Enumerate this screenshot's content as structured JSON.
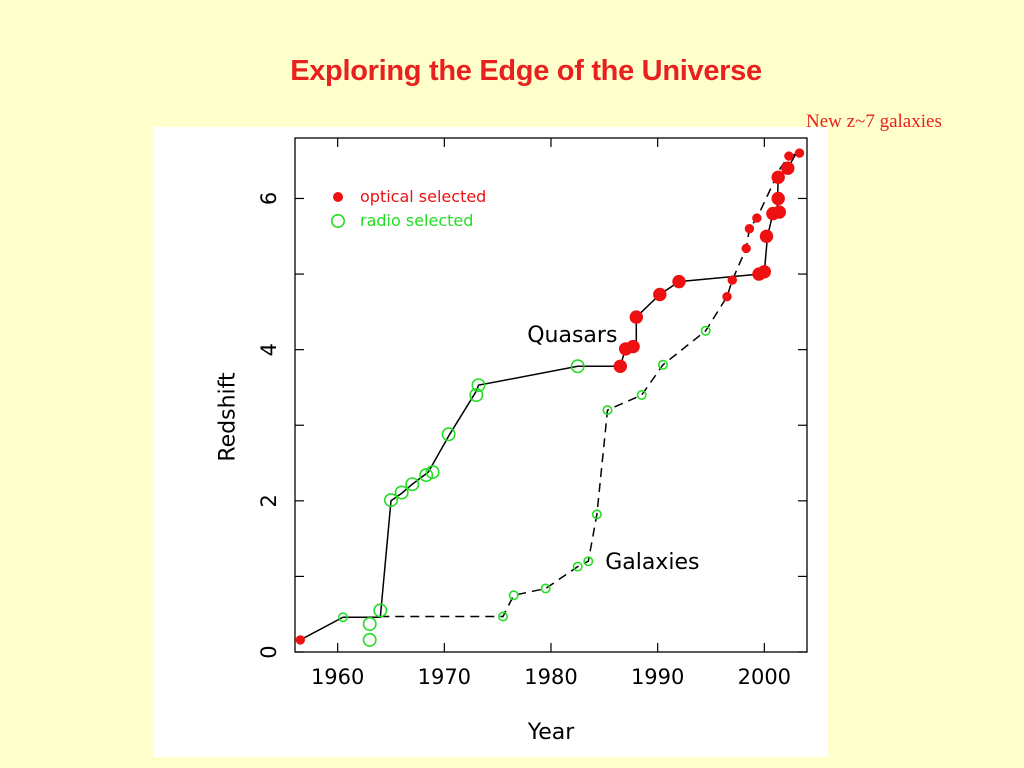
{
  "slide": {
    "title": "Exploring the Edge of the Universe",
    "note": "New z~7 galaxies"
  },
  "colors": {
    "background": "#ffffcc",
    "title": "#e8201e",
    "optical": "#ee1111",
    "radio": "#22dd22",
    "line": "#000000"
  },
  "chart_data": {
    "type": "scatter",
    "title": "",
    "xlabel": "Year",
    "ylabel": "Redshift",
    "xlim": [
      1956,
      2004
    ],
    "ylim": [
      0,
      6.8
    ],
    "xticks": [
      1960,
      1970,
      1980,
      1990,
      2000
    ],
    "yticks": [
      0,
      2,
      4,
      6
    ],
    "y_minor_ticks": [
      1,
      3,
      5
    ],
    "grid": false,
    "legend": {
      "position": "top-left",
      "entries": [
        {
          "label": "optical selected",
          "series": "optical",
          "marker": "filled-circle"
        },
        {
          "label": "radio selected",
          "series": "radio",
          "marker": "open-circle"
        }
      ]
    },
    "annotations": [
      {
        "text": "Quasars",
        "x": 1982,
        "y": 4.1
      },
      {
        "text": "Galaxies",
        "x": 1989.5,
        "y": 1.1
      }
    ],
    "series": [
      {
        "name": "Quasars",
        "line_style": "solid",
        "line": [
          [
            1956.5,
            0.16
          ],
          [
            1960.5,
            0.46
          ],
          [
            1964,
            0.46
          ],
          [
            1965,
            2.0
          ],
          [
            1966,
            2.1
          ],
          [
            1967,
            2.22
          ],
          [
            1968.5,
            2.38
          ],
          [
            1970.5,
            2.88
          ],
          [
            1973,
            3.45
          ],
          [
            1973.2,
            3.53
          ],
          [
            1982.5,
            3.78
          ],
          [
            1986.5,
            3.78
          ],
          [
            1987,
            4.02
          ],
          [
            1988,
            4.02
          ],
          [
            1988,
            4.43
          ],
          [
            1990.2,
            4.73
          ],
          [
            1992,
            4.9
          ],
          [
            1999.5,
            5.0
          ],
          [
            2000,
            5.02
          ],
          [
            2000.3,
            5.5
          ],
          [
            2000.8,
            5.8
          ],
          [
            2001.2,
            5.8
          ],
          [
            2001.3,
            6.28
          ],
          [
            2002.2,
            6.4
          ],
          [
            2003,
            6.6
          ]
        ],
        "points": [
          {
            "x": 1956.5,
            "y": 0.16,
            "kind": "optical",
            "size": "small"
          },
          {
            "x": 1960.5,
            "y": 0.46,
            "kind": "radio",
            "size": "small"
          },
          {
            "x": 1963,
            "y": 0.37,
            "kind": "radio",
            "size": "large"
          },
          {
            "x": 1963,
            "y": 0.16,
            "kind": "radio",
            "size": "large"
          },
          {
            "x": 1964,
            "y": 0.55,
            "kind": "radio",
            "size": "large"
          },
          {
            "x": 1965,
            "y": 2.01,
            "kind": "radio",
            "size": "large"
          },
          {
            "x": 1966,
            "y": 2.11,
            "kind": "radio",
            "size": "large"
          },
          {
            "x": 1967,
            "y": 2.22,
            "kind": "radio",
            "size": "large"
          },
          {
            "x": 1968.3,
            "y": 2.34,
            "kind": "radio",
            "size": "large"
          },
          {
            "x": 1968.9,
            "y": 2.38,
            "kind": "radio",
            "size": "large"
          },
          {
            "x": 1970.4,
            "y": 2.88,
            "kind": "radio",
            "size": "large"
          },
          {
            "x": 1973,
            "y": 3.4,
            "kind": "radio",
            "size": "large"
          },
          {
            "x": 1973.2,
            "y": 3.53,
            "kind": "radio",
            "size": "large"
          },
          {
            "x": 1982.5,
            "y": 3.78,
            "kind": "radio",
            "size": "large"
          },
          {
            "x": 1986.5,
            "y": 3.78,
            "kind": "optical",
            "size": "large"
          },
          {
            "x": 1987,
            "y": 4.01,
            "kind": "optical",
            "size": "large"
          },
          {
            "x": 1987.7,
            "y": 4.04,
            "kind": "optical",
            "size": "large"
          },
          {
            "x": 1988,
            "y": 4.43,
            "kind": "optical",
            "size": "large"
          },
          {
            "x": 1990.2,
            "y": 4.73,
            "kind": "optical",
            "size": "large"
          },
          {
            "x": 1992,
            "y": 4.9,
            "kind": "optical",
            "size": "large"
          },
          {
            "x": 1999.5,
            "y": 5.0,
            "kind": "optical",
            "size": "large"
          },
          {
            "x": 2000,
            "y": 5.03,
            "kind": "optical",
            "size": "large"
          },
          {
            "x": 2000.2,
            "y": 5.5,
            "kind": "optical",
            "size": "large"
          },
          {
            "x": 2000.8,
            "y": 5.8,
            "kind": "optical",
            "size": "large"
          },
          {
            "x": 2001.4,
            "y": 5.82,
            "kind": "optical",
            "size": "large"
          },
          {
            "x": 2001.3,
            "y": 6.0,
            "kind": "optical",
            "size": "large"
          },
          {
            "x": 2001.3,
            "y": 6.28,
            "kind": "optical",
            "size": "large"
          },
          {
            "x": 2002.2,
            "y": 6.4,
            "kind": "optical",
            "size": "large"
          },
          {
            "x": 2002.3,
            "y": 6.56,
            "kind": "optical",
            "size": "small"
          },
          {
            "x": 2003.3,
            "y": 6.6,
            "kind": "optical",
            "size": "small"
          }
        ]
      },
      {
        "name": "Galaxies",
        "line_style": "dashed",
        "line": [
          [
            1964,
            0.47
          ],
          [
            1975.5,
            0.47
          ],
          [
            1976.5,
            0.75
          ],
          [
            1979.5,
            0.84
          ],
          [
            1982.5,
            1.13
          ],
          [
            1983.5,
            1.2
          ],
          [
            1984.3,
            1.82
          ],
          [
            1985.3,
            3.2
          ],
          [
            1988.5,
            3.4
          ],
          [
            1990.5,
            3.8
          ],
          [
            1994.5,
            4.25
          ],
          [
            1996.5,
            4.7
          ],
          [
            1997,
            4.92
          ],
          [
            1998.3,
            5.34
          ],
          [
            1998.6,
            5.6
          ],
          [
            1999.3,
            5.74
          ],
          [
            2001.5,
            6.4
          ],
          [
            2002.3,
            6.56
          ],
          [
            2003.3,
            6.6
          ]
        ],
        "points": [
          {
            "x": 1975.5,
            "y": 0.47,
            "kind": "radio",
            "size": "small"
          },
          {
            "x": 1976.5,
            "y": 0.75,
            "kind": "radio",
            "size": "small"
          },
          {
            "x": 1979.5,
            "y": 0.84,
            "kind": "radio",
            "size": "small"
          },
          {
            "x": 1982.5,
            "y": 1.13,
            "kind": "radio",
            "size": "small"
          },
          {
            "x": 1983.5,
            "y": 1.2,
            "kind": "radio",
            "size": "small"
          },
          {
            "x": 1984.3,
            "y": 1.82,
            "kind": "radio",
            "size": "small"
          },
          {
            "x": 1985.3,
            "y": 3.2,
            "kind": "radio",
            "size": "small"
          },
          {
            "x": 1988.5,
            "y": 3.4,
            "kind": "radio",
            "size": "small"
          },
          {
            "x": 1990.5,
            "y": 3.8,
            "kind": "radio",
            "size": "small"
          },
          {
            "x": 1994.5,
            "y": 4.25,
            "kind": "radio",
            "size": "small"
          },
          {
            "x": 1996.5,
            "y": 4.7,
            "kind": "optical",
            "size": "small"
          },
          {
            "x": 1997,
            "y": 4.92,
            "kind": "optical",
            "size": "small"
          },
          {
            "x": 1998.3,
            "y": 5.34,
            "kind": "optical",
            "size": "small"
          },
          {
            "x": 1998.6,
            "y": 5.6,
            "kind": "optical",
            "size": "small"
          },
          {
            "x": 1999.3,
            "y": 5.74,
            "kind": "optical",
            "size": "small"
          }
        ]
      }
    ]
  }
}
